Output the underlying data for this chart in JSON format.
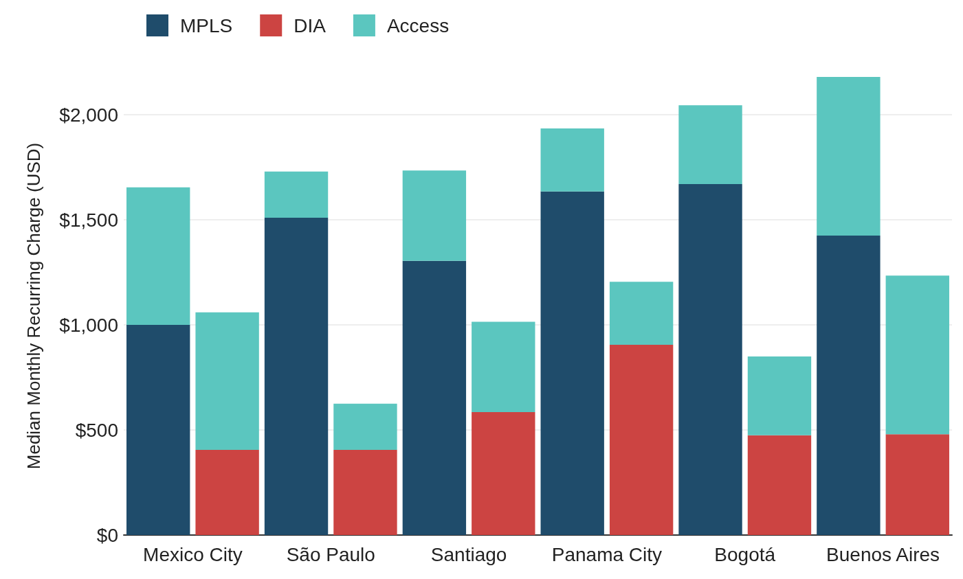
{
  "chart_data": {
    "type": "bar",
    "stacked": true,
    "ylabel": "Median Monthly Recurring Charge (USD)",
    "categories": [
      "Mexico City",
      null,
      "São Paulo",
      null,
      "Santiago",
      null,
      "Panama City",
      null,
      "Bogotá",
      null,
      "Buenos Aires",
      null
    ],
    "series": [
      {
        "name": "MPLS",
        "color": "#1f4c6b",
        "values": [
          1000,
          null,
          1510,
          null,
          1305,
          null,
          1635,
          null,
          1670,
          null,
          1425,
          null
        ]
      },
      {
        "name": "DIA",
        "color": "#cc4442",
        "values": [
          null,
          405,
          null,
          405,
          null,
          585,
          null,
          905,
          null,
          475,
          null,
          480
        ]
      },
      {
        "name": "Access",
        "color": "#5bc6bf",
        "values": [
          655,
          655,
          220,
          220,
          430,
          430,
          300,
          300,
          375,
          375,
          755,
          755
        ]
      }
    ],
    "ylim": [
      0,
      2180
    ],
    "yticks": [
      {
        "value": 0,
        "label": "$0"
      },
      {
        "value": 500,
        "label": "$500"
      },
      {
        "value": 1000,
        "label": "$1,000"
      },
      {
        "value": 1500,
        "label": "$1,500"
      },
      {
        "value": 2000,
        "label": "$2,000"
      }
    ],
    "grid": "y",
    "legend": "top left"
  }
}
